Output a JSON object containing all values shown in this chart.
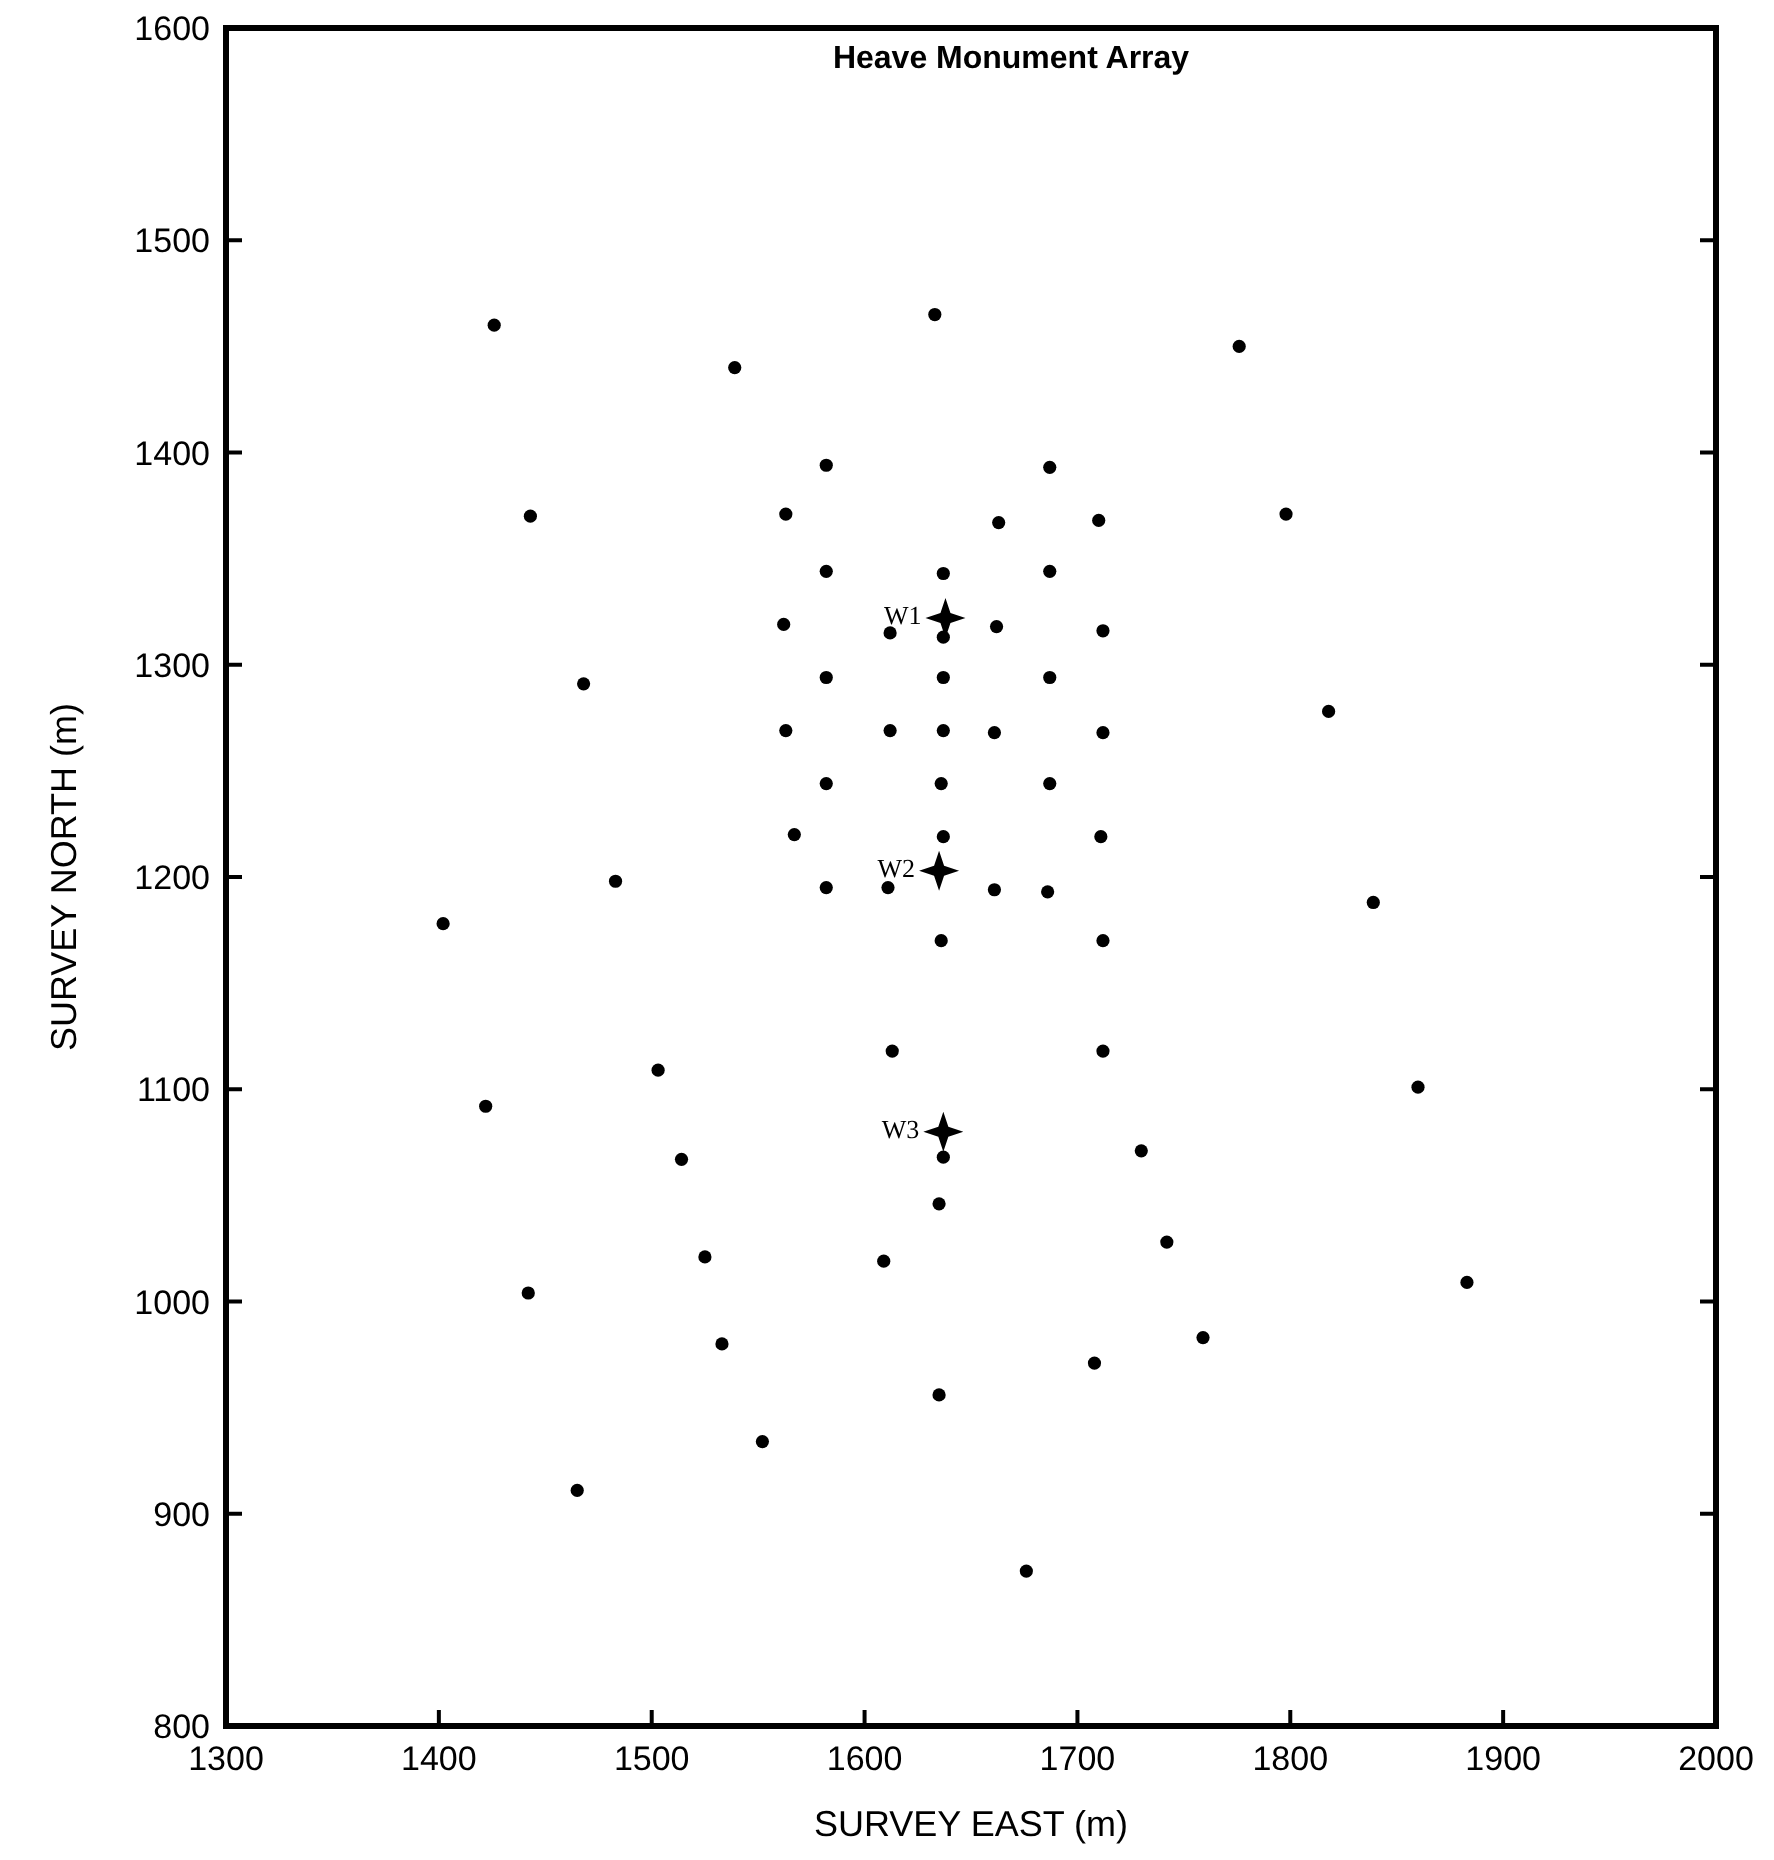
{
  "chart_data": {
    "type": "scatter",
    "title": "Heave Monument Array",
    "xlabel": "SURVEY EAST (m)",
    "ylabel": "SURVEY NORTH (m)",
    "xlim": [
      1300,
      2000
    ],
    "xticks": [
      1300,
      1400,
      1500,
      1600,
      1700,
      1800,
      1900,
      2000
    ],
    "ylim": [
      800,
      1600
    ],
    "yticks": [
      800,
      900,
      1000,
      1100,
      1200,
      1300,
      1400,
      1500,
      1600
    ],
    "grid": false,
    "series": [
      {
        "color": "#000000",
        "marker": "circle",
        "x": [
          1426,
          1539,
          1443,
          1563,
          1562,
          1468,
          1563,
          1567,
          1483,
          1402,
          1422,
          1503,
          1514,
          1525,
          1442,
          1533,
          1552,
          1465,
          1776,
          1798,
          1818,
          1839,
          1860,
          1883,
          1730,
          1742,
          1759,
          1633,
          1582,
          1687,
          1663,
          1710,
          1582,
          1637,
          1687,
          1612,
          1637,
          1662,
          1712,
          1582,
          1637,
          1687,
          1612,
          1637,
          1661,
          1712,
          1582,
          1636,
          1687,
          1637,
          1711,
          1582,
          1611,
          1661,
          1686,
          1636,
          1712,
          1613,
          1712,
          1637,
          1635,
          1609,
          1708,
          1635,
          1676
        ],
        "values": [
          1460,
          1440,
          1370,
          1371,
          1319,
          1291,
          1269,
          1220,
          1198,
          1178,
          1092,
          1109,
          1067,
          1021,
          1004,
          980,
          934,
          911,
          1450,
          1371,
          1278,
          1188,
          1101,
          1009,
          1071,
          1028,
          983,
          1465,
          1394,
          1393,
          1367,
          1368,
          1344,
          1343,
          1344,
          1315,
          1313,
          1318,
          1316,
          1294,
          1294,
          1294,
          1269,
          1269,
          1268,
          1268,
          1244,
          1244,
          1244,
          1219,
          1219,
          1195,
          1195,
          1194,
          1193,
          1170,
          1170,
          1118,
          1118,
          1068,
          1046,
          1019,
          971,
          956,
          873
        ]
      },
      {
        "color": "#000000",
        "marker": "star",
        "x": [
          1638,
          1635,
          1637
        ],
        "values": [
          1322,
          1203,
          1080
        ]
      }
    ],
    "annotations": [
      {
        "text": "W1",
        "x": 1638,
        "y": 1322
      },
      {
        "text": "W2",
        "x": 1635,
        "y": 1203
      },
      {
        "text": "W3",
        "x": 1637,
        "y": 1080
      }
    ]
  }
}
